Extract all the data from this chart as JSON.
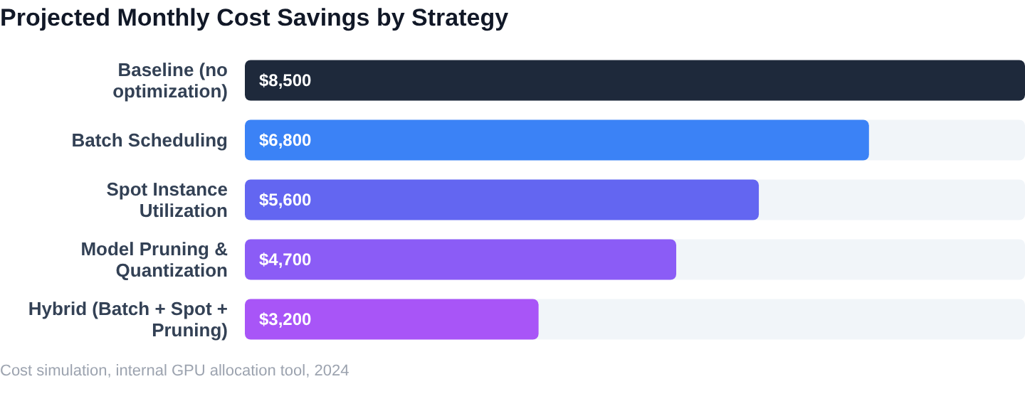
{
  "chart_data": {
    "type": "bar",
    "orientation": "horizontal",
    "title": "Projected Monthly Cost Savings by Strategy",
    "categories": [
      "Baseline (no optimization)",
      "Batch Scheduling",
      "Spot Instance Utilization",
      "Model Pruning & Quantization",
      "Hybrid (Batch + Spot + Pruning)"
    ],
    "values": [
      8500,
      6800,
      5600,
      4700,
      3200
    ],
    "colors": [
      "#1e293b",
      "#3b82f6",
      "#6366f1",
      "#8b5cf6",
      "#a855f7"
    ],
    "value_labels": [
      "$8,500",
      "$6,800",
      "$5,600",
      "$4,700",
      "$3,200"
    ],
    "xlim": [
      0,
      8500
    ],
    "annotations": [
      "Cost simulation, internal GPU allocation tool, 2024"
    ]
  }
}
